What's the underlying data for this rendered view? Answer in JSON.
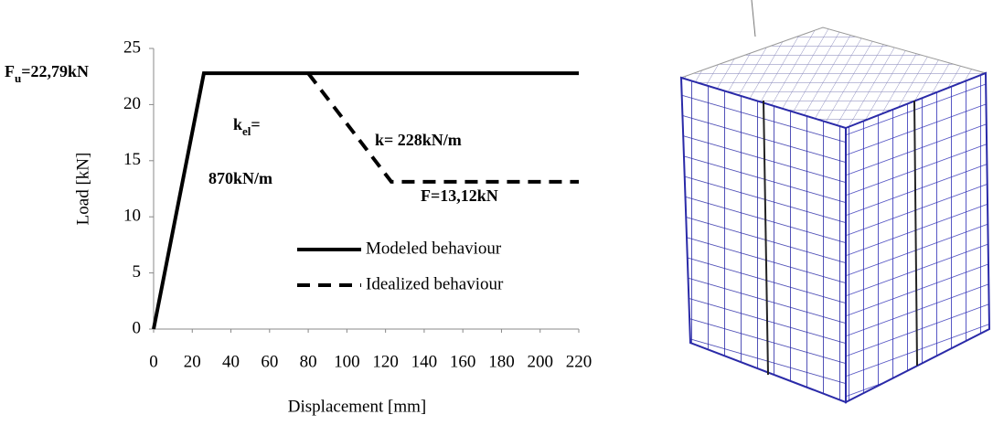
{
  "chart_data": {
    "type": "line",
    "xlabel": "Displacement [mm]",
    "ylabel": "Load  [kN]",
    "xlim": [
      0,
      220
    ],
    "xticks": [
      0,
      20,
      40,
      60,
      80,
      100,
      120,
      140,
      160,
      180,
      200,
      220
    ],
    "ylim": [
      0,
      25
    ],
    "yticks": [
      0,
      5,
      10,
      15,
      20,
      25
    ],
    "grid": false,
    "legend": "lower center",
    "series": [
      {
        "name": "Modeled behaviour",
        "color": "#000000",
        "linestyle": "solid",
        "x": [
          0,
          26,
          220
        ],
        "values": [
          0,
          22.79,
          22.79
        ]
      },
      {
        "name": "Idealized behaviour",
        "color": "#000000",
        "linestyle": "dashed",
        "x": [
          80,
          123,
          220
        ],
        "values": [
          22.79,
          13.12,
          13.12
        ]
      }
    ],
    "annotations": [
      {
        "text": "F",
        "sub": "u",
        "after": "=22,79kN"
      },
      {
        "text": "k",
        "sub": "el",
        "after": "="
      },
      {
        "text": "870kN/m"
      },
      {
        "text": "k= 228kN/m"
      },
      {
        "text": "F=13,12kN"
      }
    ]
  }
}
